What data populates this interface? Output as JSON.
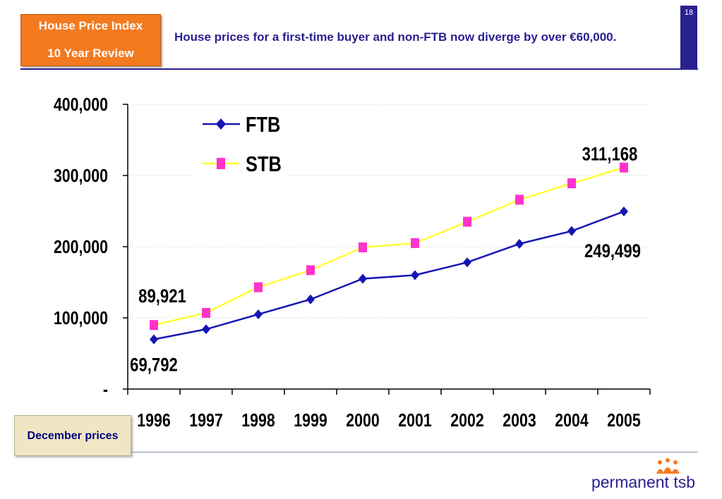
{
  "header": {
    "badge_line1": "House Price Index",
    "badge_line2": "10 Year Review",
    "headline": "House prices for a first-time buyer and non-FTB now diverge by over €60,000.",
    "page_number": "18"
  },
  "note": {
    "label": "December prices"
  },
  "logo": {
    "text": "permanent tsb",
    "icon": "flame-people-icon"
  },
  "colors": {
    "accent": "#2a1f8f",
    "badge": "#f47a20",
    "ftb": "#1515b4",
    "stb": "#ffff33",
    "stb_marker": "#ff33cc"
  },
  "chart_data": {
    "type": "line",
    "categories": [
      "1996",
      "1997",
      "1998",
      "1999",
      "2000",
      "2001",
      "2002",
      "2003",
      "2004",
      "2005"
    ],
    "series": [
      {
        "name": "FTB",
        "marker": "diamond",
        "values": [
          69792,
          84000,
          105000,
          126000,
          155000,
          160000,
          178000,
          204000,
          222000,
          249499
        ]
      },
      {
        "name": "STB",
        "marker": "square",
        "values": [
          89921,
          107000,
          143000,
          167000,
          199000,
          205000,
          235000,
          266000,
          289000,
          311168
        ]
      }
    ],
    "ylim": [
      0,
      400000
    ],
    "yticks": [
      0,
      100000,
      200000,
      300000,
      400000
    ],
    "ytick_labels": [
      "-",
      "100,000",
      "200,000",
      "300,000",
      "400,000"
    ],
    "annotations": [
      {
        "series": 0,
        "index": 0,
        "text": "69,792"
      },
      {
        "series": 1,
        "index": 0,
        "text": "89,921"
      },
      {
        "series": 0,
        "index": 9,
        "text": "249,499"
      },
      {
        "series": 1,
        "index": 9,
        "text": "311,168"
      }
    ],
    "legend_position": "top-left",
    "grid": true
  }
}
